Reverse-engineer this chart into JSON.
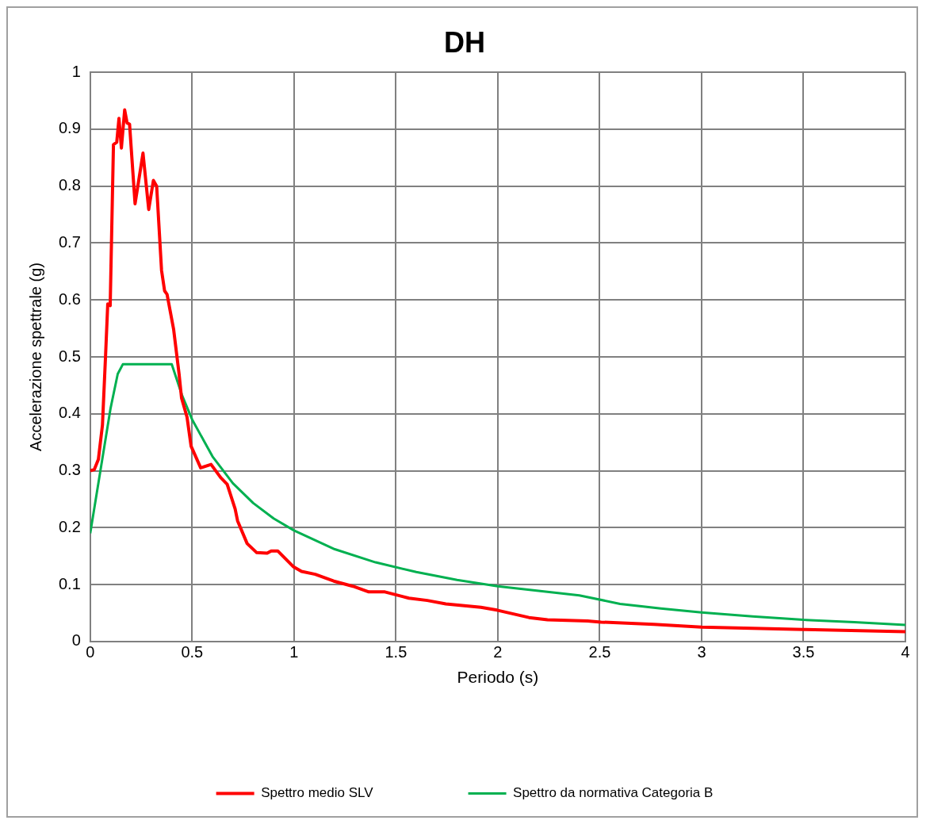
{
  "chart_data": {
    "type": "line",
    "title": "DH",
    "xlabel": "Periodo (s)",
    "ylabel": "Accelerazione spettrale (g)",
    "xlim": [
      0,
      4
    ],
    "xticks": [
      0,
      0.5,
      1,
      1.5,
      2,
      2.5,
      3,
      3.5,
      4
    ],
    "ylim": [
      0,
      1
    ],
    "yticks": [
      0,
      0.1,
      0.2,
      0.3,
      0.4,
      0.5,
      0.6,
      0.7,
      0.8,
      0.9,
      1
    ],
    "grid": true,
    "legend": "bottom",
    "marker": "none",
    "line_style": "solid",
    "series": [
      {
        "name": "Spettro medio SLV",
        "color": "#ff0000",
        "x": [
          0,
          0.02,
          0.04,
          0.06,
          0.075,
          0.086,
          0.098,
          0.114,
          0.13,
          0.141,
          0.153,
          0.169,
          0.181,
          0.193,
          0.22,
          0.259,
          0.287,
          0.31,
          0.326,
          0.35,
          0.365,
          0.377,
          0.409,
          0.436,
          0.448,
          0.475,
          0.495,
          0.542,
          0.593,
          0.64,
          0.672,
          0.711,
          0.723,
          0.77,
          0.817,
          0.868,
          0.888,
          0.92,
          0.998,
          1.037,
          1.104,
          1.195,
          1.289,
          1.367,
          1.446,
          1.564,
          1.654,
          1.745,
          1.917,
          1.996,
          2.153,
          2.244,
          2.44,
          2.507,
          2.766,
          3,
          3.5,
          4
        ],
        "values": [
          0.3,
          0.302,
          0.32,
          0.38,
          0.5,
          0.593,
          0.59,
          0.873,
          0.877,
          0.919,
          0.867,
          0.934,
          0.911,
          0.909,
          0.769,
          0.858,
          0.759,
          0.81,
          0.8,
          0.652,
          0.616,
          0.61,
          0.549,
          0.47,
          0.428,
          0.394,
          0.343,
          0.305,
          0.311,
          0.288,
          0.276,
          0.233,
          0.212,
          0.172,
          0.156,
          0.155,
          0.159,
          0.159,
          0.131,
          0.123,
          0.118,
          0.106,
          0.097,
          0.087,
          0.087,
          0.076,
          0.072,
          0.066,
          0.06,
          0.055,
          0.042,
          0.038,
          0.036,
          0.034,
          0.03,
          0.025,
          0.021,
          0.017
        ]
      },
      {
        "name": "Spettro da normativa Categoria B",
        "color": "#00b050",
        "x": [
          0,
          0.05,
          0.1,
          0.135,
          0.16,
          0.4,
          0.45,
          0.5,
          0.6,
          0.7,
          0.8,
          0.9,
          1,
          1.2,
          1.4,
          1.6,
          1.8,
          2,
          2.2,
          2.4,
          2.6,
          2.8,
          3,
          3.25,
          3.5,
          3.75,
          4
        ],
        "values": [
          0.19,
          0.3,
          0.41,
          0.47,
          0.487,
          0.487,
          0.433,
          0.39,
          0.325,
          0.278,
          0.243,
          0.216,
          0.195,
          0.162,
          0.139,
          0.122,
          0.108,
          0.097,
          0.089,
          0.081,
          0.066,
          0.058,
          0.051,
          0.044,
          0.038,
          0.034,
          0.029
        ]
      }
    ]
  }
}
